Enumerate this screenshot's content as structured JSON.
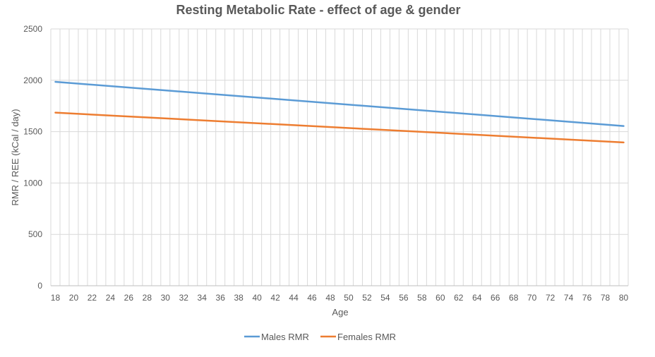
{
  "chart_data": {
    "type": "line",
    "title": "Resting Metabolic Rate - effect of age & gender",
    "xlabel": "Age",
    "ylabel": "RMR / REE (kCal / day)",
    "xlim": [
      18,
      80
    ],
    "ylim": [
      0,
      2500
    ],
    "yticks": [
      0,
      500,
      1000,
      1500,
      2000,
      2500
    ],
    "xticks": [
      18,
      20,
      22,
      24,
      26,
      28,
      30,
      32,
      34,
      36,
      38,
      40,
      42,
      44,
      46,
      48,
      50,
      52,
      54,
      56,
      58,
      60,
      62,
      64,
      66,
      68,
      70,
      72,
      74,
      76,
      78,
      80
    ],
    "grid": "vertical and horizontal",
    "legend": "bottom",
    "x": [
      18,
      80
    ],
    "series": [
      {
        "name": "Males RMR",
        "color": "#5b9bd5",
        "values": [
          1985,
          1555
        ]
      },
      {
        "name": "Females RMR",
        "color": "#ed7d31",
        "values": [
          1685,
          1395
        ]
      }
    ]
  }
}
